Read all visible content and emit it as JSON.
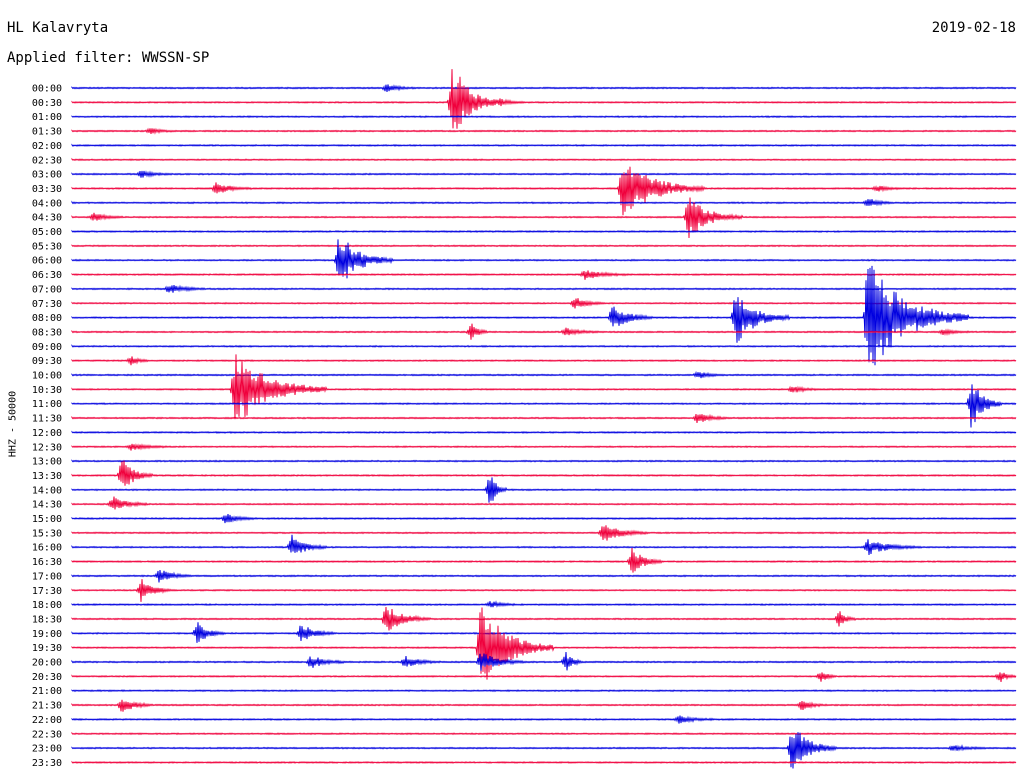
{
  "header": {
    "station": "HL Kalavryta",
    "date": "2019-02-18",
    "filter": "Applied filter: WWSSN-SP"
  },
  "chart_data": {
    "type": "helicorder",
    "channel_label": "HHZ - 50000",
    "trace_colors": [
      "#0000e0",
      "#f0003c"
    ],
    "row_labels": [
      "00:00",
      "00:30",
      "01:00",
      "01:30",
      "02:00",
      "02:30",
      "03:00",
      "03:30",
      "04:00",
      "04:30",
      "05:00",
      "05:30",
      "06:00",
      "06:30",
      "07:00",
      "07:30",
      "08:00",
      "08:30",
      "09:00",
      "09:30",
      "10:00",
      "10:30",
      "11:00",
      "11:30",
      "12:00",
      "12:30",
      "13:00",
      "13:30",
      "14:00",
      "14:30",
      "15:00",
      "15:30",
      "16:00",
      "16:30",
      "17:00",
      "17:30",
      "18:00",
      "18:30",
      "19:00",
      "19:30",
      "20:00",
      "20:30",
      "21:00",
      "21:30",
      "22:00",
      "22:30",
      "23:00",
      "23:30"
    ],
    "row_minutes": 30,
    "events": [
      {
        "row": 0,
        "t": 0.33,
        "amp": 4,
        "dur": 0.035
      },
      {
        "row": 1,
        "t": 0.4,
        "amp": 45,
        "dur": 0.05
      },
      {
        "row": 1,
        "t": 0.45,
        "amp": 4,
        "dur": 0.03
      },
      {
        "row": 3,
        "t": 0.08,
        "amp": 3,
        "dur": 0.03
      },
      {
        "row": 6,
        "t": 0.07,
        "amp": 4,
        "dur": 0.035
      },
      {
        "row": 7,
        "t": 0.15,
        "amp": 6,
        "dur": 0.04
      },
      {
        "row": 7,
        "t": 0.58,
        "amp": 32,
        "dur": 0.09
      },
      {
        "row": 7,
        "t": 0.85,
        "amp": 3,
        "dur": 0.03
      },
      {
        "row": 8,
        "t": 0.84,
        "amp": 5,
        "dur": 0.03
      },
      {
        "row": 9,
        "t": 0.02,
        "amp": 4,
        "dur": 0.035
      },
      {
        "row": 9,
        "t": 0.65,
        "amp": 22,
        "dur": 0.06
      },
      {
        "row": 12,
        "t": 0.28,
        "amp": 28,
        "dur": 0.06
      },
      {
        "row": 13,
        "t": 0.54,
        "amp": 5,
        "dur": 0.05
      },
      {
        "row": 14,
        "t": 0.1,
        "amp": 5,
        "dur": 0.04
      },
      {
        "row": 15,
        "t": 0.53,
        "amp": 6,
        "dur": 0.035
      },
      {
        "row": 16,
        "t": 0.57,
        "amp": 14,
        "dur": 0.045
      },
      {
        "row": 16,
        "t": 0.7,
        "amp": 28,
        "dur": 0.06
      },
      {
        "row": 16,
        "t": 0.84,
        "amp": 60,
        "dur": 0.11
      },
      {
        "row": 17,
        "t": 0.42,
        "amp": 10,
        "dur": 0.02
      },
      {
        "row": 17,
        "t": 0.52,
        "amp": 4,
        "dur": 0.04
      },
      {
        "row": 17,
        "t": 0.92,
        "amp": 3,
        "dur": 0.03
      },
      {
        "row": 19,
        "t": 0.06,
        "amp": 5,
        "dur": 0.02
      },
      {
        "row": 20,
        "t": 0.66,
        "amp": 4,
        "dur": 0.03
      },
      {
        "row": 21,
        "t": 0.17,
        "amp": 40,
        "dur": 0.1
      },
      {
        "row": 21,
        "t": 0.76,
        "amp": 4,
        "dur": 0.03
      },
      {
        "row": 22,
        "t": 0.95,
        "amp": 28,
        "dur": 0.035
      },
      {
        "row": 23,
        "t": 0.66,
        "amp": 6,
        "dur": 0.035
      },
      {
        "row": 25,
        "t": 0.06,
        "amp": 4,
        "dur": 0.04
      },
      {
        "row": 27,
        "t": 0.05,
        "amp": 18,
        "dur": 0.035
      },
      {
        "row": 28,
        "t": 0.44,
        "amp": 18,
        "dur": 0.02
      },
      {
        "row": 29,
        "t": 0.04,
        "amp": 9,
        "dur": 0.04
      },
      {
        "row": 30,
        "t": 0.16,
        "amp": 5,
        "dur": 0.035
      },
      {
        "row": 31,
        "t": 0.56,
        "amp": 10,
        "dur": 0.05
      },
      {
        "row": 32,
        "t": 0.23,
        "amp": 12,
        "dur": 0.04
      },
      {
        "row": 32,
        "t": 0.84,
        "amp": 8,
        "dur": 0.06
      },
      {
        "row": 33,
        "t": 0.59,
        "amp": 14,
        "dur": 0.035
      },
      {
        "row": 34,
        "t": 0.09,
        "amp": 8,
        "dur": 0.035
      },
      {
        "row": 35,
        "t": 0.07,
        "amp": 12,
        "dur": 0.035
      },
      {
        "row": 36,
        "t": 0.44,
        "amp": 4,
        "dur": 0.03
      },
      {
        "row": 37,
        "t": 0.33,
        "amp": 14,
        "dur": 0.05
      },
      {
        "row": 37,
        "t": 0.81,
        "amp": 8,
        "dur": 0.02
      },
      {
        "row": 38,
        "t": 0.13,
        "amp": 12,
        "dur": 0.03
      },
      {
        "row": 38,
        "t": 0.24,
        "amp": 10,
        "dur": 0.04
      },
      {
        "row": 39,
        "t": 0.43,
        "amp": 45,
        "dur": 0.08
      },
      {
        "row": 40,
        "t": 0.25,
        "amp": 7,
        "dur": 0.04
      },
      {
        "row": 40,
        "t": 0.35,
        "amp": 6,
        "dur": 0.04
      },
      {
        "row": 40,
        "t": 0.43,
        "amp": 10,
        "dur": 0.05
      },
      {
        "row": 40,
        "t": 0.52,
        "amp": 10,
        "dur": 0.02
      },
      {
        "row": 41,
        "t": 0.79,
        "amp": 6,
        "dur": 0.02
      },
      {
        "row": 41,
        "t": 0.98,
        "amp": 6,
        "dur": 0.02
      },
      {
        "row": 43,
        "t": 0.05,
        "amp": 9,
        "dur": 0.035
      },
      {
        "row": 43,
        "t": 0.77,
        "amp": 5,
        "dur": 0.03
      },
      {
        "row": 44,
        "t": 0.64,
        "amp": 4,
        "dur": 0.04
      },
      {
        "row": 46,
        "t": 0.76,
        "amp": 26,
        "dur": 0.05
      },
      {
        "row": 46,
        "t": 0.93,
        "amp": 3,
        "dur": 0.04
      }
    ]
  }
}
